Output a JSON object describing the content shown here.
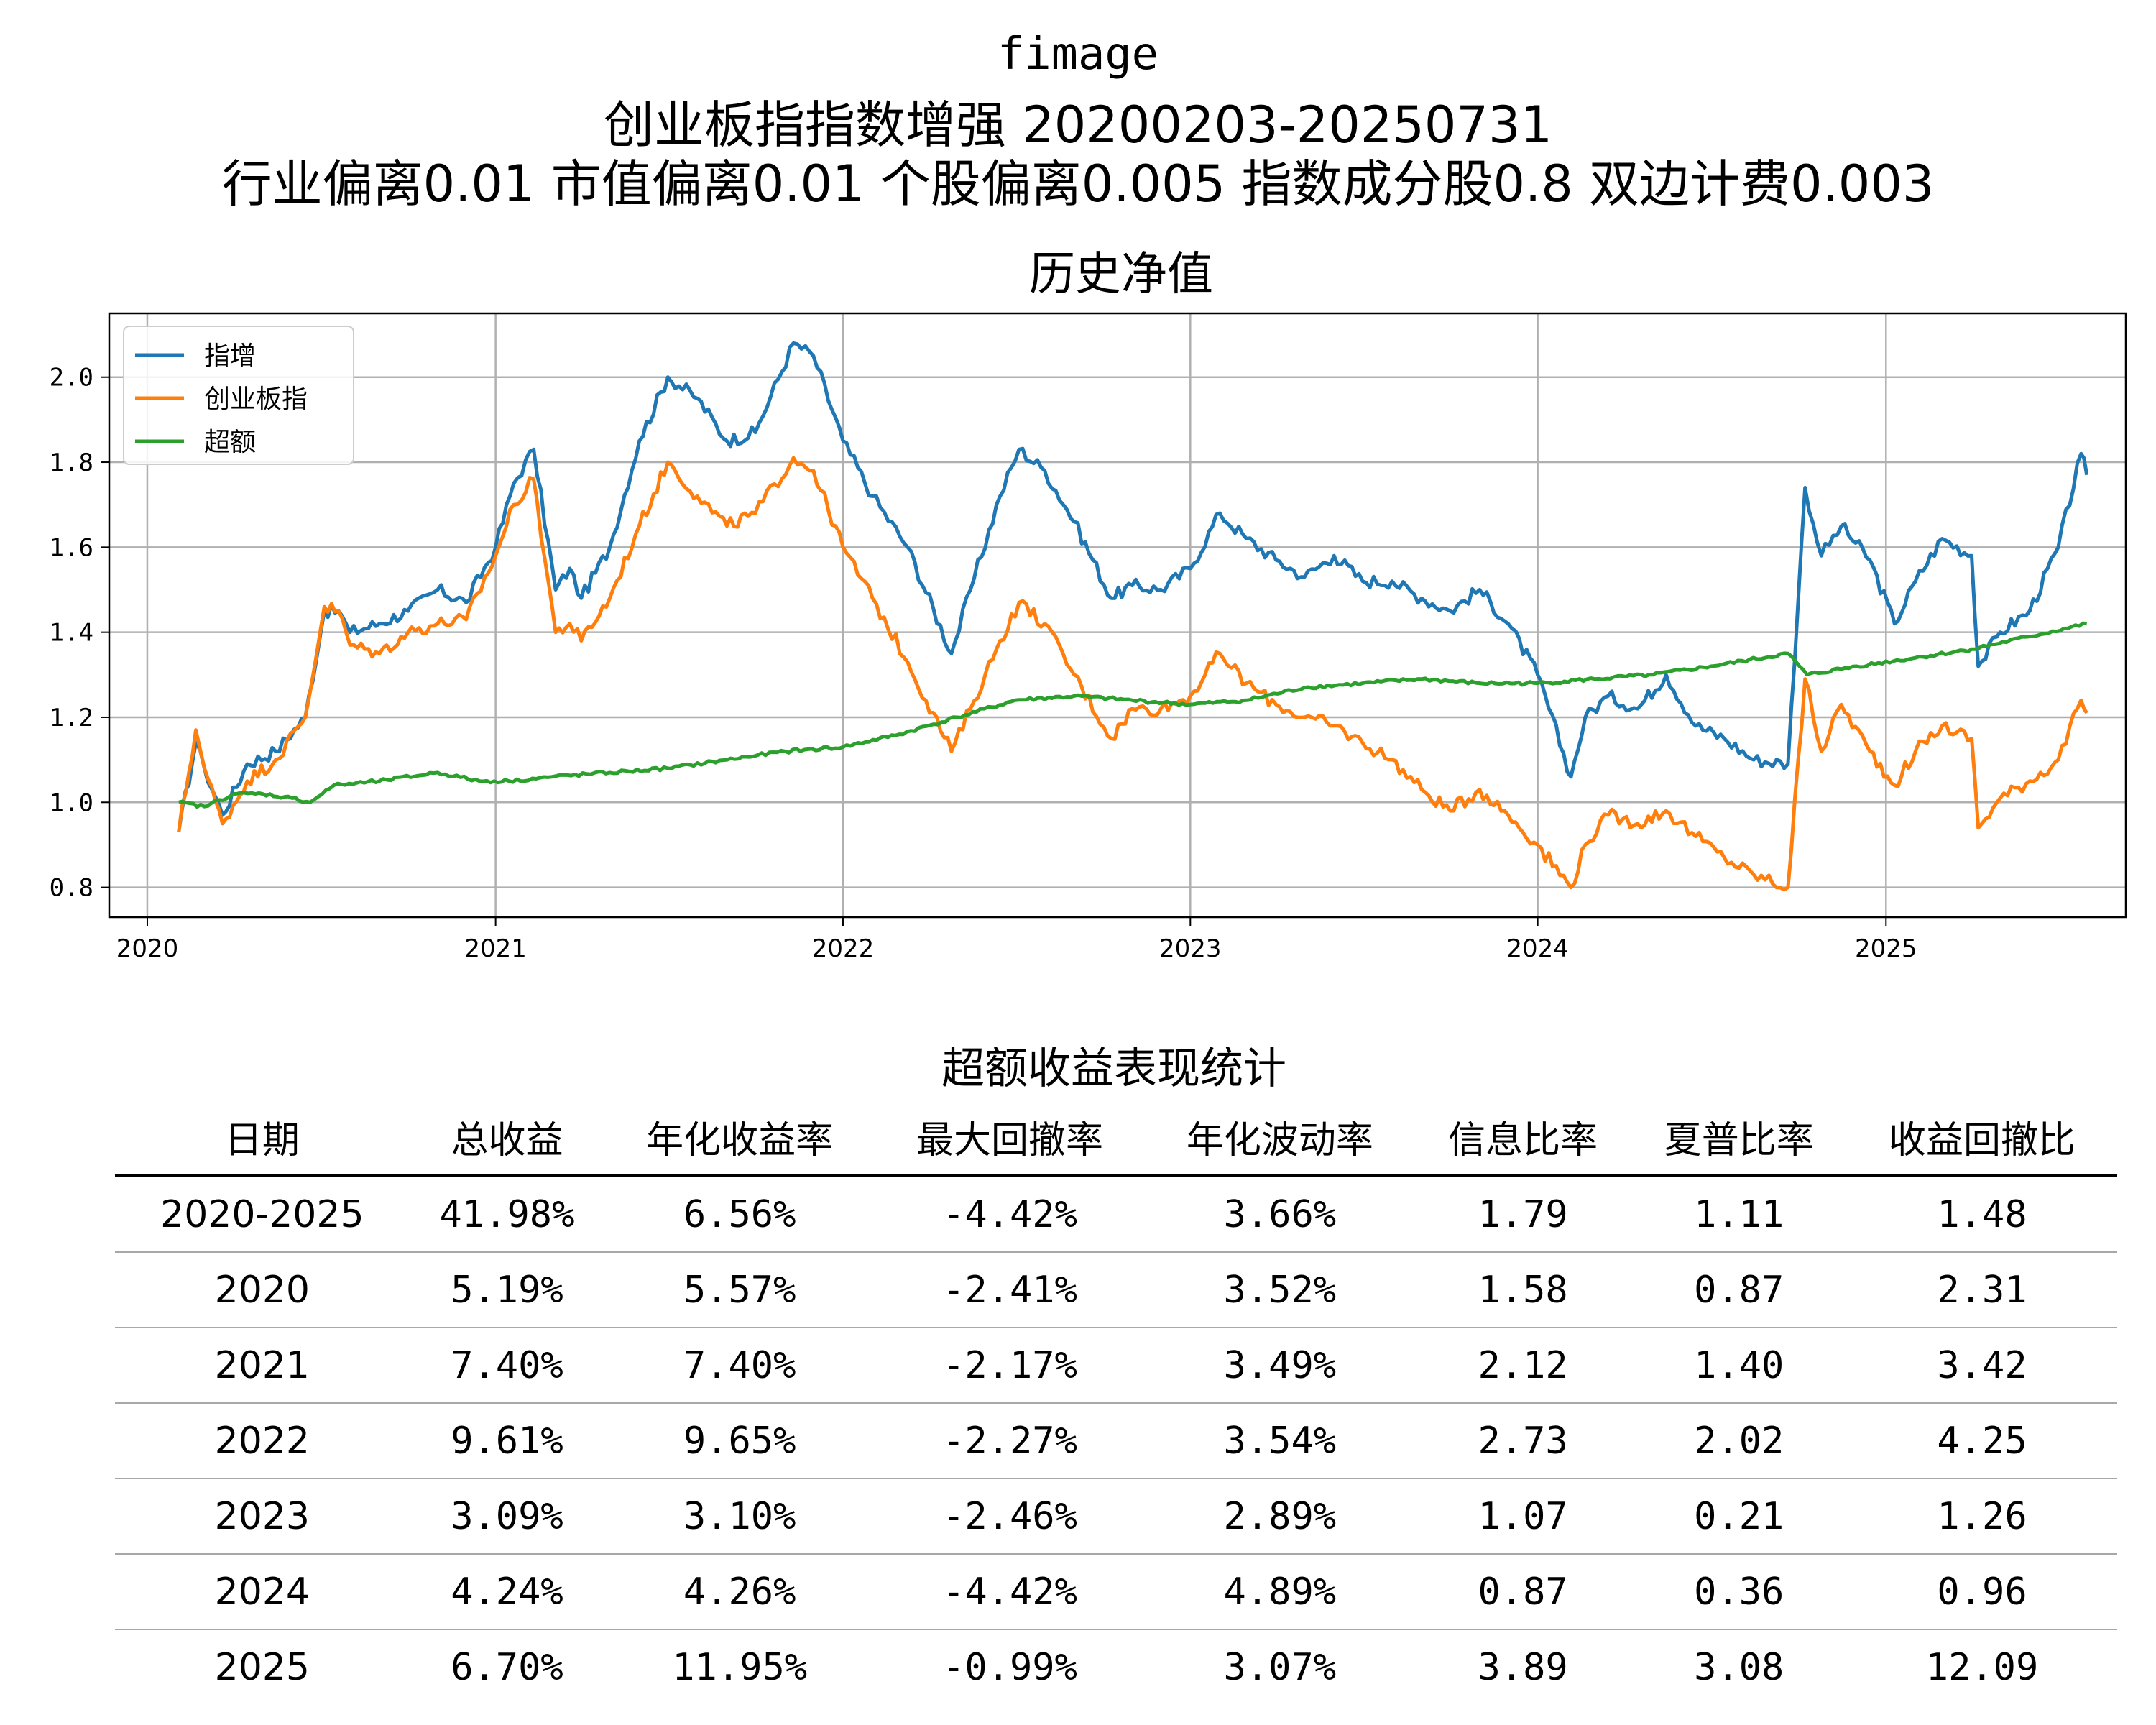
{
  "header": {
    "line1": "fimage",
    "line2": "创业板指指数增强  20200203-20250731",
    "line3": "行业偏离0.01  市值偏离0.01  个股偏离0.005  指数成分股0.8  双边计费0.003"
  },
  "chart_data": {
    "type": "line",
    "title": "历史净值",
    "xlabel": "",
    "ylabel": "",
    "x_ticks": [
      "2020",
      "2021",
      "2022",
      "2023",
      "2024",
      "2025"
    ],
    "y_ticks": [
      "0.8",
      "1.0",
      "1.2",
      "1.4",
      "1.6",
      "1.8",
      "2.0"
    ],
    "xlim": [
      "2019-11-22",
      "2025-09-10"
    ],
    "ylim": [
      0.73,
      2.15
    ],
    "grid": true,
    "legend_position": "top-left",
    "series": [
      {
        "name": "指增",
        "color": "#1f77b4",
        "points": [
          [
            "2020-02-03",
            0.93
          ],
          [
            "2020-02-21",
            1.14
          ],
          [
            "2020-03-01",
            1.08
          ],
          [
            "2020-03-20",
            0.97
          ],
          [
            "2020-04-15",
            1.09
          ],
          [
            "2020-05-15",
            1.12
          ],
          [
            "2020-06-15",
            1.2
          ],
          [
            "2020-07-05",
            1.45
          ],
          [
            "2020-07-20",
            1.45
          ],
          [
            "2020-08-01",
            1.4
          ],
          [
            "2020-09-01",
            1.42
          ],
          [
            "2020-10-01",
            1.45
          ],
          [
            "2020-11-01",
            1.5
          ],
          [
            "2020-12-01",
            1.47
          ],
          [
            "2021-01-01",
            1.6
          ],
          [
            "2021-01-20",
            1.75
          ],
          [
            "2021-02-10",
            1.83
          ],
          [
            "2021-03-05",
            1.5
          ],
          [
            "2021-03-20",
            1.55
          ],
          [
            "2021-04-01",
            1.48
          ],
          [
            "2021-05-01",
            1.6
          ],
          [
            "2021-06-01",
            1.85
          ],
          [
            "2021-07-01",
            2.0
          ],
          [
            "2021-08-01",
            1.95
          ],
          [
            "2021-09-01",
            1.85
          ],
          [
            "2021-10-01",
            1.87
          ],
          [
            "2021-11-10",
            2.08
          ],
          [
            "2021-12-01",
            2.05
          ],
          [
            "2022-01-01",
            1.85
          ],
          [
            "2022-02-01",
            1.72
          ],
          [
            "2022-03-10",
            1.6
          ],
          [
            "2022-04-25",
            1.35
          ],
          [
            "2022-05-15",
            1.5
          ],
          [
            "2022-06-15",
            1.72
          ],
          [
            "2022-07-05",
            1.83
          ],
          [
            "2022-08-01",
            1.78
          ],
          [
            "2022-09-01",
            1.66
          ],
          [
            "2022-10-10",
            1.48
          ],
          [
            "2022-11-01",
            1.51
          ],
          [
            "2022-12-01",
            1.5
          ],
          [
            "2023-01-01",
            1.55
          ],
          [
            "2023-02-01",
            1.68
          ],
          [
            "2023-03-01",
            1.62
          ],
          [
            "2023-04-01",
            1.57
          ],
          [
            "2023-05-01",
            1.53
          ],
          [
            "2023-06-01",
            1.58
          ],
          [
            "2023-07-01",
            1.52
          ],
          [
            "2023-08-01",
            1.52
          ],
          [
            "2023-09-01",
            1.48
          ],
          [
            "2023-10-01",
            1.45
          ],
          [
            "2023-11-01",
            1.5
          ],
          [
            "2023-12-01",
            1.42
          ],
          [
            "2024-01-01",
            1.3
          ],
          [
            "2024-02-05",
            1.06
          ],
          [
            "2024-02-20",
            1.2
          ],
          [
            "2024-03-15",
            1.25
          ],
          [
            "2024-04-15",
            1.22
          ],
          [
            "2024-05-15",
            1.3
          ],
          [
            "2024-06-15",
            1.18
          ],
          [
            "2024-07-15",
            1.15
          ],
          [
            "2024-08-15",
            1.1
          ],
          [
            "2024-09-20",
            1.09
          ],
          [
            "2024-10-08",
            1.74
          ],
          [
            "2024-10-25",
            1.58
          ],
          [
            "2024-11-15",
            1.65
          ],
          [
            "2024-12-15",
            1.57
          ],
          [
            "2025-01-10",
            1.42
          ],
          [
            "2025-02-01",
            1.52
          ],
          [
            "2025-03-01",
            1.62
          ],
          [
            "2025-04-01",
            1.58
          ],
          [
            "2025-04-08",
            1.32
          ],
          [
            "2025-05-01",
            1.4
          ],
          [
            "2025-06-01",
            1.45
          ],
          [
            "2025-07-01",
            1.6
          ],
          [
            "2025-07-25",
            1.82
          ],
          [
            "2025-07-31",
            1.77
          ]
        ]
      },
      {
        "name": "创业板指",
        "color": "#ff7f0e",
        "points": [
          [
            "2020-02-03",
            0.93
          ],
          [
            "2020-02-21",
            1.17
          ],
          [
            "2020-03-01",
            1.08
          ],
          [
            "2020-03-20",
            0.95
          ],
          [
            "2020-04-15",
            1.05
          ],
          [
            "2020-05-15",
            1.1
          ],
          [
            "2020-06-15",
            1.2
          ],
          [
            "2020-07-05",
            1.46
          ],
          [
            "2020-07-20",
            1.45
          ],
          [
            "2020-08-01",
            1.37
          ],
          [
            "2020-09-01",
            1.35
          ],
          [
            "2020-10-01",
            1.4
          ],
          [
            "2020-11-01",
            1.42
          ],
          [
            "2020-12-01",
            1.43
          ],
          [
            "2021-01-01",
            1.58
          ],
          [
            "2021-01-20",
            1.7
          ],
          [
            "2021-02-10",
            1.76
          ],
          [
            "2021-03-05",
            1.4
          ],
          [
            "2021-03-20",
            1.42
          ],
          [
            "2021-04-01",
            1.38
          ],
          [
            "2021-05-01",
            1.48
          ],
          [
            "2021-06-01",
            1.65
          ],
          [
            "2021-07-01",
            1.8
          ],
          [
            "2021-08-01",
            1.72
          ],
          [
            "2021-09-01",
            1.65
          ],
          [
            "2021-10-01",
            1.68
          ],
          [
            "2021-11-10",
            1.81
          ],
          [
            "2021-12-01",
            1.78
          ],
          [
            "2022-01-01",
            1.6
          ],
          [
            "2022-02-01",
            1.48
          ],
          [
            "2022-03-10",
            1.33
          ],
          [
            "2022-04-25",
            1.12
          ],
          [
            "2022-05-15",
            1.22
          ],
          [
            "2022-06-15",
            1.38
          ],
          [
            "2022-07-05",
            1.47
          ],
          [
            "2022-08-01",
            1.42
          ],
          [
            "2022-09-01",
            1.3
          ],
          [
            "2022-10-10",
            1.15
          ],
          [
            "2022-11-01",
            1.22
          ],
          [
            "2022-12-01",
            1.22
          ],
          [
            "2023-01-01",
            1.25
          ],
          [
            "2023-02-01",
            1.35
          ],
          [
            "2023-03-01",
            1.28
          ],
          [
            "2023-04-01",
            1.23
          ],
          [
            "2023-05-01",
            1.2
          ],
          [
            "2023-06-01",
            1.18
          ],
          [
            "2023-07-01",
            1.14
          ],
          [
            "2023-08-01",
            1.1
          ],
          [
            "2023-09-01",
            1.03
          ],
          [
            "2023-10-01",
            0.98
          ],
          [
            "2023-11-01",
            1.03
          ],
          [
            "2023-12-01",
            0.97
          ],
          [
            "2024-01-01",
            0.9
          ],
          [
            "2024-02-05",
            0.8
          ],
          [
            "2024-02-20",
            0.9
          ],
          [
            "2024-03-15",
            0.97
          ],
          [
            "2024-04-15",
            0.95
          ],
          [
            "2024-05-15",
            0.98
          ],
          [
            "2024-06-15",
            0.92
          ],
          [
            "2024-07-15",
            0.87
          ],
          [
            "2024-08-15",
            0.83
          ],
          [
            "2024-09-20",
            0.8
          ],
          [
            "2024-10-08",
            1.29
          ],
          [
            "2024-10-25",
            1.12
          ],
          [
            "2024-11-15",
            1.23
          ],
          [
            "2024-12-15",
            1.12
          ],
          [
            "2025-01-10",
            1.04
          ],
          [
            "2025-02-01",
            1.12
          ],
          [
            "2025-03-01",
            1.18
          ],
          [
            "2025-04-01",
            1.15
          ],
          [
            "2025-04-08",
            0.94
          ],
          [
            "2025-05-01",
            1.01
          ],
          [
            "2025-06-01",
            1.05
          ],
          [
            "2025-07-01",
            1.1
          ],
          [
            "2025-07-25",
            1.24
          ],
          [
            "2025-07-31",
            1.21
          ]
        ]
      },
      {
        "name": "超额",
        "color": "#2ca02c",
        "points": [
          [
            "2020-02-03",
            1.0
          ],
          [
            "2020-03-01",
            0.99
          ],
          [
            "2020-04-01",
            1.02
          ],
          [
            "2020-05-01",
            1.02
          ],
          [
            "2020-06-01",
            1.01
          ],
          [
            "2020-06-20",
            1.0
          ],
          [
            "2020-07-15",
            1.04
          ],
          [
            "2020-09-01",
            1.05
          ],
          [
            "2020-11-01",
            1.07
          ],
          [
            "2020-12-15",
            1.05
          ],
          [
            "2021-01-15",
            1.05
          ],
          [
            "2021-03-01",
            1.06
          ],
          [
            "2021-05-01",
            1.07
          ],
          [
            "2021-07-01",
            1.08
          ],
          [
            "2021-09-01",
            1.1
          ],
          [
            "2021-11-01",
            1.12
          ],
          [
            "2022-01-01",
            1.13
          ],
          [
            "2022-03-01",
            1.16
          ],
          [
            "2022-05-01",
            1.2
          ],
          [
            "2022-07-01",
            1.24
          ],
          [
            "2022-09-01",
            1.25
          ],
          [
            "2022-11-01",
            1.24
          ],
          [
            "2023-01-01",
            1.23
          ],
          [
            "2023-03-01",
            1.24
          ],
          [
            "2023-05-01",
            1.27
          ],
          [
            "2023-07-01",
            1.28
          ],
          [
            "2023-09-01",
            1.29
          ],
          [
            "2023-11-01",
            1.28
          ],
          [
            "2024-01-01",
            1.28
          ],
          [
            "2024-03-01",
            1.29
          ],
          [
            "2024-05-01",
            1.3
          ],
          [
            "2024-07-01",
            1.32
          ],
          [
            "2024-09-20",
            1.35
          ],
          [
            "2024-10-10",
            1.3
          ],
          [
            "2024-12-01",
            1.32
          ],
          [
            "2025-02-01",
            1.34
          ],
          [
            "2025-04-01",
            1.36
          ],
          [
            "2025-06-01",
            1.39
          ],
          [
            "2025-07-31",
            1.42
          ]
        ]
      }
    ]
  },
  "stats": {
    "title": "超额收益表现统计",
    "headers": [
      "日期",
      "总收益",
      "年化收益率",
      "最大回撤率",
      "年化波动率",
      "信息比率",
      "夏普比率",
      "收益回撤比"
    ],
    "rows": [
      [
        "2020-2025",
        "41.98%",
        "6.56%",
        "-4.42%",
        "3.66%",
        "1.79",
        "1.11",
        "1.48"
      ],
      [
        "2020",
        "5.19%",
        "5.57%",
        "-2.41%",
        "3.52%",
        "1.58",
        "0.87",
        "2.31"
      ],
      [
        "2021",
        "7.40%",
        "7.40%",
        "-2.17%",
        "3.49%",
        "2.12",
        "1.40",
        "3.42"
      ],
      [
        "2022",
        "9.61%",
        "9.65%",
        "-2.27%",
        "3.54%",
        "2.73",
        "2.02",
        "4.25"
      ],
      [
        "2023",
        "3.09%",
        "3.10%",
        "-2.46%",
        "2.89%",
        "1.07",
        "0.21",
        "1.26"
      ],
      [
        "2024",
        "4.24%",
        "4.26%",
        "-4.42%",
        "4.89%",
        "0.87",
        "0.36",
        "0.96"
      ],
      [
        "2025",
        "6.70%",
        "11.95%",
        "-0.99%",
        "3.07%",
        "3.89",
        "3.08",
        "12.09"
      ]
    ]
  }
}
